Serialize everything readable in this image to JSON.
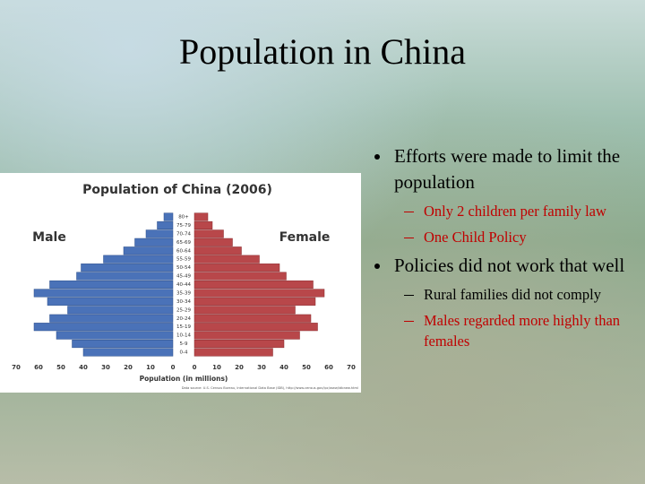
{
  "slide": {
    "title": "Population in China",
    "bullets": [
      {
        "text": "Efforts were made to limit the population",
        "sub": [
          {
            "text": "Only 2 children per family law",
            "color": "#c00000"
          },
          {
            "text": "One Child Policy",
            "color": "#c00000"
          }
        ]
      },
      {
        "text": "Policies did not work that well",
        "sub": [
          {
            "text": "Rural families did not comply",
            "color": "#000000"
          },
          {
            "text": "Males regarded more highly than females",
            "color": "#c00000"
          }
        ]
      }
    ]
  },
  "chart_data": {
    "type": "pyramid",
    "title": "Population of China (2006)",
    "xlabel": "Population (in millions)",
    "source": "Data source: U.S. Census Bureau, International Data Base (IDB), http://www.census.gov/ipc/www/idbnew.html",
    "categories": [
      "0-4",
      "5-9",
      "10-14",
      "15-19",
      "20-24",
      "25-29",
      "30-34",
      "35-39",
      "40-44",
      "45-49",
      "50-54",
      "55-59",
      "60-64",
      "65-69",
      "70-74",
      "75-79",
      "80+"
    ],
    "series": [
      {
        "name": "Male",
        "color": "#4a72b8",
        "values": [
          40,
          45,
          52,
          62,
          55,
          47,
          56,
          62,
          55,
          43,
          41,
          31,
          22,
          17,
          12,
          7,
          4
        ]
      },
      {
        "name": "Female",
        "color": "#b8474a",
        "values": [
          35,
          40,
          47,
          55,
          52,
          45,
          54,
          58,
          53,
          41,
          38,
          29,
          21,
          17,
          13,
          8,
          6
        ]
      }
    ],
    "xlim": [
      0,
      70
    ],
    "xticks": [
      0,
      10,
      20,
      30,
      40,
      50,
      60,
      70
    ]
  }
}
